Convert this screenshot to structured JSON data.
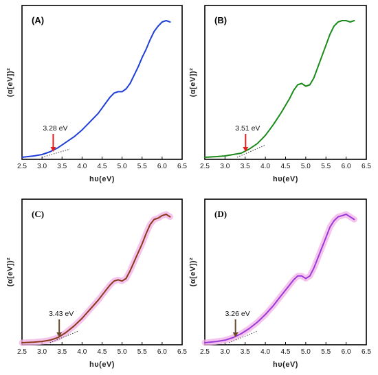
{
  "chart_data": [
    {
      "panel": "(A)",
      "type": "line",
      "xlabel": "hυ(eV)",
      "ylabel": "(α[eV])²",
      "xlim": [
        2.5,
        6.5
      ],
      "xticks": [
        "2.5",
        "3.0",
        "3.5",
        "4.0",
        "4.5",
        "5.0",
        "5.5",
        "6.0",
        "6.5"
      ],
      "color": "#1f3fd6",
      "glow": false,
      "series_x": [
        2.5,
        2.8,
        3.0,
        3.2,
        3.4,
        3.6,
        3.8,
        4.0,
        4.2,
        4.4,
        4.6,
        4.7,
        4.8,
        4.9,
        5.0,
        5.1,
        5.2,
        5.3,
        5.4,
        5.5,
        5.6,
        5.7,
        5.8,
        5.9,
        6.0,
        6.1,
        6.2
      ],
      "series_y": [
        0.0,
        0.01,
        0.02,
        0.04,
        0.07,
        0.11,
        0.15,
        0.2,
        0.26,
        0.32,
        0.4,
        0.44,
        0.47,
        0.48,
        0.48,
        0.5,
        0.54,
        0.6,
        0.66,
        0.73,
        0.79,
        0.86,
        0.92,
        0.96,
        0.99,
        1.0,
        0.99
      ],
      "bandgap": {
        "label": "3.28 eV",
        "value": 3.28,
        "arrow_color": "#e02020"
      },
      "tangent": [
        [
          3.0,
          0.0
        ],
        [
          3.7,
          0.06
        ]
      ]
    },
    {
      "panel": "(B)",
      "type": "line",
      "xlabel": "hυ(eV)",
      "ylabel": "(α[eV])²",
      "xlim": [
        2.5,
        6.5
      ],
      "xticks": [
        "2.5",
        "3.0",
        "3.5",
        "4.0",
        "4.5",
        "5.0",
        "5.5",
        "6.0",
        "6.5"
      ],
      "color": "#1a8a1a",
      "glow": false,
      "series_x": [
        2.5,
        2.8,
        3.0,
        3.2,
        3.4,
        3.6,
        3.8,
        4.0,
        4.2,
        4.4,
        4.6,
        4.7,
        4.8,
        4.9,
        5.0,
        5.1,
        5.2,
        5.3,
        5.4,
        5.5,
        5.6,
        5.7,
        5.8,
        5.9,
        6.0,
        6.1,
        6.2
      ],
      "series_y": [
        0.0,
        0.005,
        0.01,
        0.02,
        0.03,
        0.06,
        0.1,
        0.16,
        0.24,
        0.33,
        0.43,
        0.49,
        0.53,
        0.54,
        0.52,
        0.53,
        0.58,
        0.66,
        0.74,
        0.82,
        0.9,
        0.96,
        0.99,
        1.0,
        1.0,
        0.99,
        1.0
      ],
      "bandgap": {
        "label": "3.51 eV",
        "value": 3.51,
        "arrow_color": "#e02020"
      },
      "tangent": [
        [
          3.3,
          0.0
        ],
        [
          4.0,
          0.09
        ]
      ]
    },
    {
      "panel": "(C)",
      "type": "line",
      "xlabel": "hυ(eV)",
      "ylabel": "(α[eV])²",
      "xlim": [
        2.5,
        6.5
      ],
      "xticks": [
        "2.5",
        "3.0",
        "3.5",
        "4.0",
        "4.5",
        "5.0",
        "5.5",
        "6.0",
        "6.5"
      ],
      "color": "#8a3a1a",
      "glow": true,
      "glow_color": "#f3b2e8",
      "series_x": [
        2.5,
        2.8,
        3.0,
        3.2,
        3.4,
        3.6,
        3.8,
        4.0,
        4.2,
        4.4,
        4.6,
        4.7,
        4.8,
        4.9,
        5.0,
        5.1,
        5.2,
        5.3,
        5.4,
        5.5,
        5.6,
        5.7,
        5.8,
        5.9,
        6.0,
        6.1,
        6.2
      ],
      "series_y": [
        0.0,
        0.005,
        0.01,
        0.02,
        0.04,
        0.08,
        0.13,
        0.19,
        0.26,
        0.33,
        0.41,
        0.45,
        0.48,
        0.49,
        0.48,
        0.5,
        0.56,
        0.63,
        0.7,
        0.77,
        0.85,
        0.92,
        0.96,
        0.97,
        0.99,
        1.0,
        0.98
      ],
      "bandgap": {
        "label": "3.43 eV",
        "value": 3.43,
        "arrow_color": "#6a4a2a"
      },
      "tangent": [
        [
          3.2,
          0.0
        ],
        [
          3.9,
          0.09
        ]
      ]
    },
    {
      "panel": "(D)",
      "type": "line",
      "xlabel": "hυ(eV)",
      "ylabel": "(α[eV])²",
      "xlim": [
        2.5,
        6.5
      ],
      "xticks": [
        "2.5",
        "3.0",
        "3.5",
        "4.0",
        "4.5",
        "5.0",
        "5.5",
        "6.0",
        "6.5"
      ],
      "color": "#9a3ad8",
      "glow": true,
      "glow_color": "#f3b2e8",
      "series_x": [
        2.5,
        2.8,
        3.0,
        3.2,
        3.4,
        3.6,
        3.8,
        4.0,
        4.2,
        4.4,
        4.6,
        4.7,
        4.8,
        4.9,
        5.0,
        5.1,
        5.2,
        5.3,
        5.4,
        5.5,
        5.6,
        5.7,
        5.8,
        5.9,
        6.0,
        6.1,
        6.2
      ],
      "series_y": [
        0.0,
        0.01,
        0.02,
        0.04,
        0.07,
        0.11,
        0.16,
        0.22,
        0.29,
        0.37,
        0.45,
        0.49,
        0.52,
        0.52,
        0.5,
        0.52,
        0.58,
        0.66,
        0.74,
        0.82,
        0.9,
        0.95,
        0.98,
        0.99,
        1.0,
        0.98,
        0.96
      ],
      "bandgap": {
        "label": "3.26 eV",
        "value": 3.26,
        "arrow_color": "#6a4a2a"
      },
      "tangent": [
        [
          3.1,
          0.0
        ],
        [
          3.8,
          0.09
        ]
      ]
    }
  ]
}
